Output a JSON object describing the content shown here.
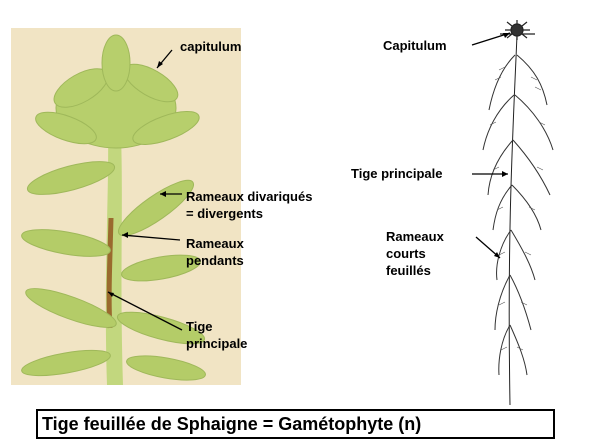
{
  "photo": {
    "labels": {
      "capitulum": "capitulum",
      "rameaux_divariques_1": "Rameaux divariqués",
      "rameaux_divariques_2": "= divergents",
      "rameaux_pendants_1": "Rameaux",
      "rameaux_pendants_2": "pendants",
      "tige_1": "Tige",
      "tige_2": "principale"
    }
  },
  "drawing": {
    "labels": {
      "capitulum": "Capitulum",
      "tige_principale": "Tige principale",
      "rameaux_1": "Rameaux",
      "rameaux_2": "courts",
      "rameaux_3": "feuillés"
    }
  },
  "caption": "Tige feuillée de Sphaigne = Gamétophyte (n)",
  "colors": {
    "photo_bg": "#f2e6c8",
    "plant_green": "#b7cf6c",
    "stem_brown": "#9a6a2e",
    "ink": "#000000"
  }
}
